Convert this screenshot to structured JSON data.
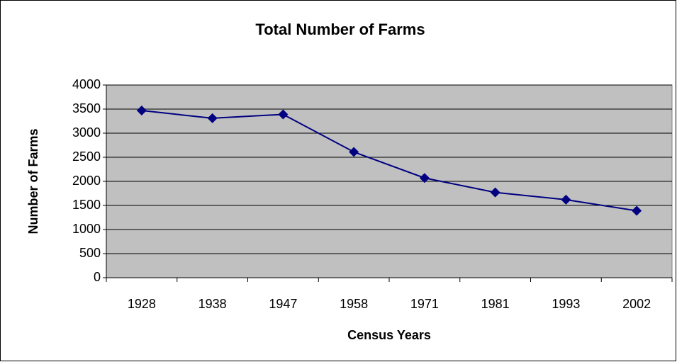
{
  "chart_data": {
    "type": "line",
    "title": "Total Number of Farms",
    "x_label": "Census Years",
    "y_label": "Number of Farms",
    "categories": [
      "1928",
      "1938",
      "1947",
      "1958",
      "1971",
      "1981",
      "1993",
      "2002"
    ],
    "series": [
      {
        "name": "Number of Farms",
        "color": "#000080",
        "values": [
          3470,
          3310,
          3390,
          2610,
          2070,
          1770,
          1620,
          1390
        ]
      }
    ],
    "ylim": [
      0,
      4000
    ],
    "yticks": [
      0,
      500,
      1000,
      1500,
      2000,
      2500,
      3000,
      3500,
      4000
    ],
    "grid": true,
    "plot_background": "#c0c0c0"
  }
}
